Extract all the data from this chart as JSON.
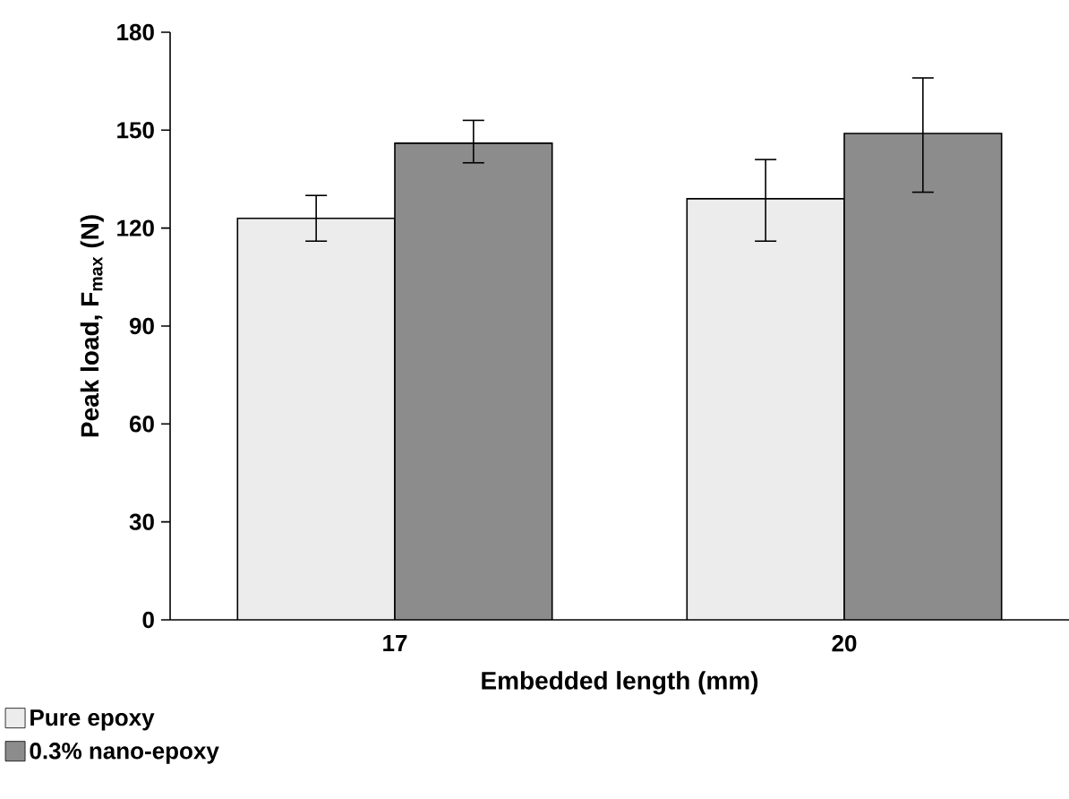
{
  "chart_data": {
    "type": "bar",
    "xlabel": "Embedded length (mm)",
    "ylabel": "Peak load, F$_{max}$ (N)",
    "categories": [
      "17",
      "20"
    ],
    "series": [
      {
        "name": "Pure epoxy",
        "color": "#ececec",
        "values": [
          123,
          129
        ],
        "errors": [
          [
            116,
            130
          ],
          [
            116,
            141
          ]
        ]
      },
      {
        "name": "0.3% nano-epoxy",
        "color": "#8c8c8c",
        "values": [
          146,
          149
        ],
        "errors": [
          [
            140,
            153
          ],
          [
            131,
            166
          ]
        ]
      }
    ],
    "ylim": [
      0,
      180
    ],
    "yticks": [
      0,
      30,
      60,
      90,
      120,
      150,
      180
    ],
    "grid": false,
    "legend": "bottom left"
  }
}
